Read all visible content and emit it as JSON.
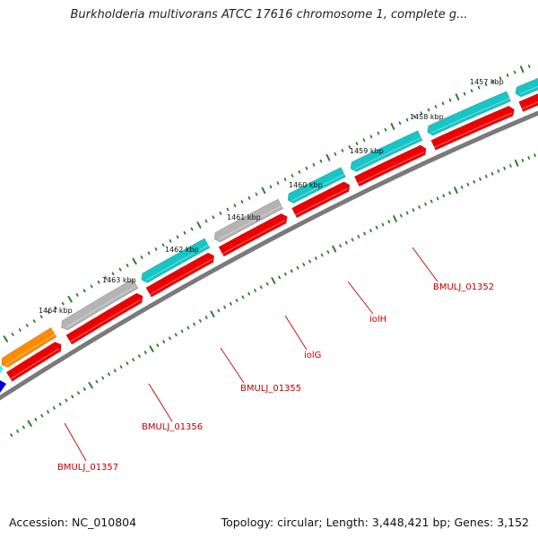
{
  "title": "Burkholderia multivorans ATCC 17616 chromosome 1, complete g...",
  "footer": {
    "accession": "Accession: NC_010804",
    "summary": "Topology: circular; Length: 3,448,421 bp; Genes: 3,152"
  },
  "colors": {
    "backbone": "#7a7a7a",
    "tick": "#2e7d2e",
    "label": "#c00000",
    "red": "#ee0000",
    "cyan": "#16c6c6",
    "gray": "#b4b4b4",
    "orange": "#ff8c00",
    "blue": "#0000dd"
  },
  "kbp_labels": [
    "1457 kbp",
    "1458 kbp",
    "1459 kbp",
    "1460 kbp",
    "1461 kbp",
    "1462 kbp",
    "1463 kbp",
    "1464 kbp"
  ],
  "gene_labels": [
    "BMULJ_01352",
    "iolH",
    "iolG",
    "BMULJ_01355",
    "BMULJ_01356",
    "BMULJ_01357"
  ]
}
